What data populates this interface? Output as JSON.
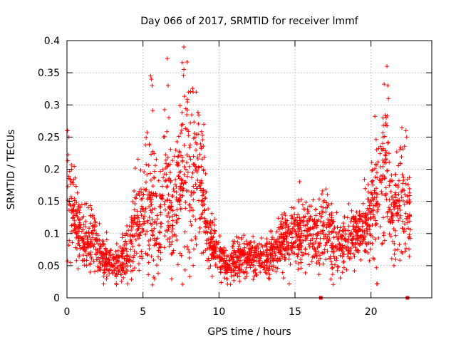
{
  "chart_data": {
    "type": "scatter",
    "title": "Day 066 of 2017, SRMTID for receiver lmmf",
    "xlabel": "GPS time / hours",
    "ylabel": "SRMTID / TECUs",
    "xlim": [
      0,
      24
    ],
    "ylim": [
      0,
      0.4
    ],
    "x_ticks": [
      0,
      5,
      10,
      15,
      20
    ],
    "x_tick_labels": [
      "0",
      "5",
      "10",
      "15",
      "20"
    ],
    "y_ticks": [
      0,
      0.05,
      0.1,
      0.15,
      0.2,
      0.25,
      0.3,
      0.35,
      0.4
    ],
    "y_tick_labels": [
      "0",
      "0.05",
      "0.1",
      "0.15",
      "0.2",
      "0.25",
      "0.3",
      "0.35",
      "0.4"
    ],
    "grid": true,
    "marker": "plus",
    "color": "#ff0000",
    "n_points": 2400,
    "data_range_hours": [
      0,
      22.6
    ],
    "profile": [
      [
        0.0,
        0.15,
        0.045
      ],
      [
        0.3,
        0.15,
        0.04
      ],
      [
        0.6,
        0.12,
        0.03
      ],
      [
        1.0,
        0.095,
        0.025
      ],
      [
        1.5,
        0.085,
        0.02
      ],
      [
        1.8,
        0.11,
        0.03
      ],
      [
        2.2,
        0.06,
        0.015
      ],
      [
        3.0,
        0.055,
        0.015
      ],
      [
        3.5,
        0.055,
        0.015
      ],
      [
        4.0,
        0.07,
        0.02
      ],
      [
        4.5,
        0.11,
        0.035
      ],
      [
        5.0,
        0.13,
        0.04
      ],
      [
        5.5,
        0.17,
        0.06
      ],
      [
        6.0,
        0.1,
        0.04
      ],
      [
        6.5,
        0.17,
        0.05
      ],
      [
        7.0,
        0.11,
        0.04
      ],
      [
        7.5,
        0.2,
        0.06
      ],
      [
        8.0,
        0.2,
        0.07
      ],
      [
        8.5,
        0.2,
        0.07
      ],
      [
        9.0,
        0.15,
        0.05
      ],
      [
        9.3,
        0.09,
        0.02
      ],
      [
        10.0,
        0.07,
        0.015
      ],
      [
        10.5,
        0.045,
        0.012
      ],
      [
        11.0,
        0.06,
        0.015
      ],
      [
        12.0,
        0.065,
        0.015
      ],
      [
        13.0,
        0.06,
        0.015
      ],
      [
        14.0,
        0.085,
        0.02
      ],
      [
        15.0,
        0.095,
        0.025
      ],
      [
        16.0,
        0.1,
        0.025
      ],
      [
        16.8,
        0.11,
        0.03
      ],
      [
        17.5,
        0.095,
        0.025
      ],
      [
        18.0,
        0.075,
        0.02
      ],
      [
        18.5,
        0.09,
        0.02
      ],
      [
        19.0,
        0.1,
        0.02
      ],
      [
        19.5,
        0.11,
        0.025
      ],
      [
        20.0,
        0.14,
        0.035
      ],
      [
        20.5,
        0.18,
        0.05
      ],
      [
        21.0,
        0.2,
        0.055
      ],
      [
        21.5,
        0.13,
        0.03
      ],
      [
        22.0,
        0.16,
        0.05
      ],
      [
        22.6,
        0.12,
        0.04
      ]
    ],
    "spikes": [
      [
        0.05,
        0.26
      ],
      [
        0.1,
        0.25
      ],
      [
        0.3,
        0.2
      ],
      [
        5.5,
        0.345
      ],
      [
        5.55,
        0.34
      ],
      [
        5.6,
        0.33
      ],
      [
        6.6,
        0.372
      ],
      [
        6.65,
        0.33
      ],
      [
        6.7,
        0.28
      ],
      [
        8.0,
        0.32
      ],
      [
        8.3,
        0.32
      ],
      [
        8.5,
        0.32
      ],
      [
        9.0,
        0.27
      ],
      [
        20.8,
        0.25
      ],
      [
        21.0,
        0.28
      ],
      [
        21.05,
        0.36
      ],
      [
        21.1,
        0.33
      ],
      [
        21.15,
        0.31
      ],
      [
        22.3,
        0.26
      ],
      [
        22.35,
        0.25
      ]
    ],
    "zero_markers": [
      16.7,
      22.4
    ]
  }
}
